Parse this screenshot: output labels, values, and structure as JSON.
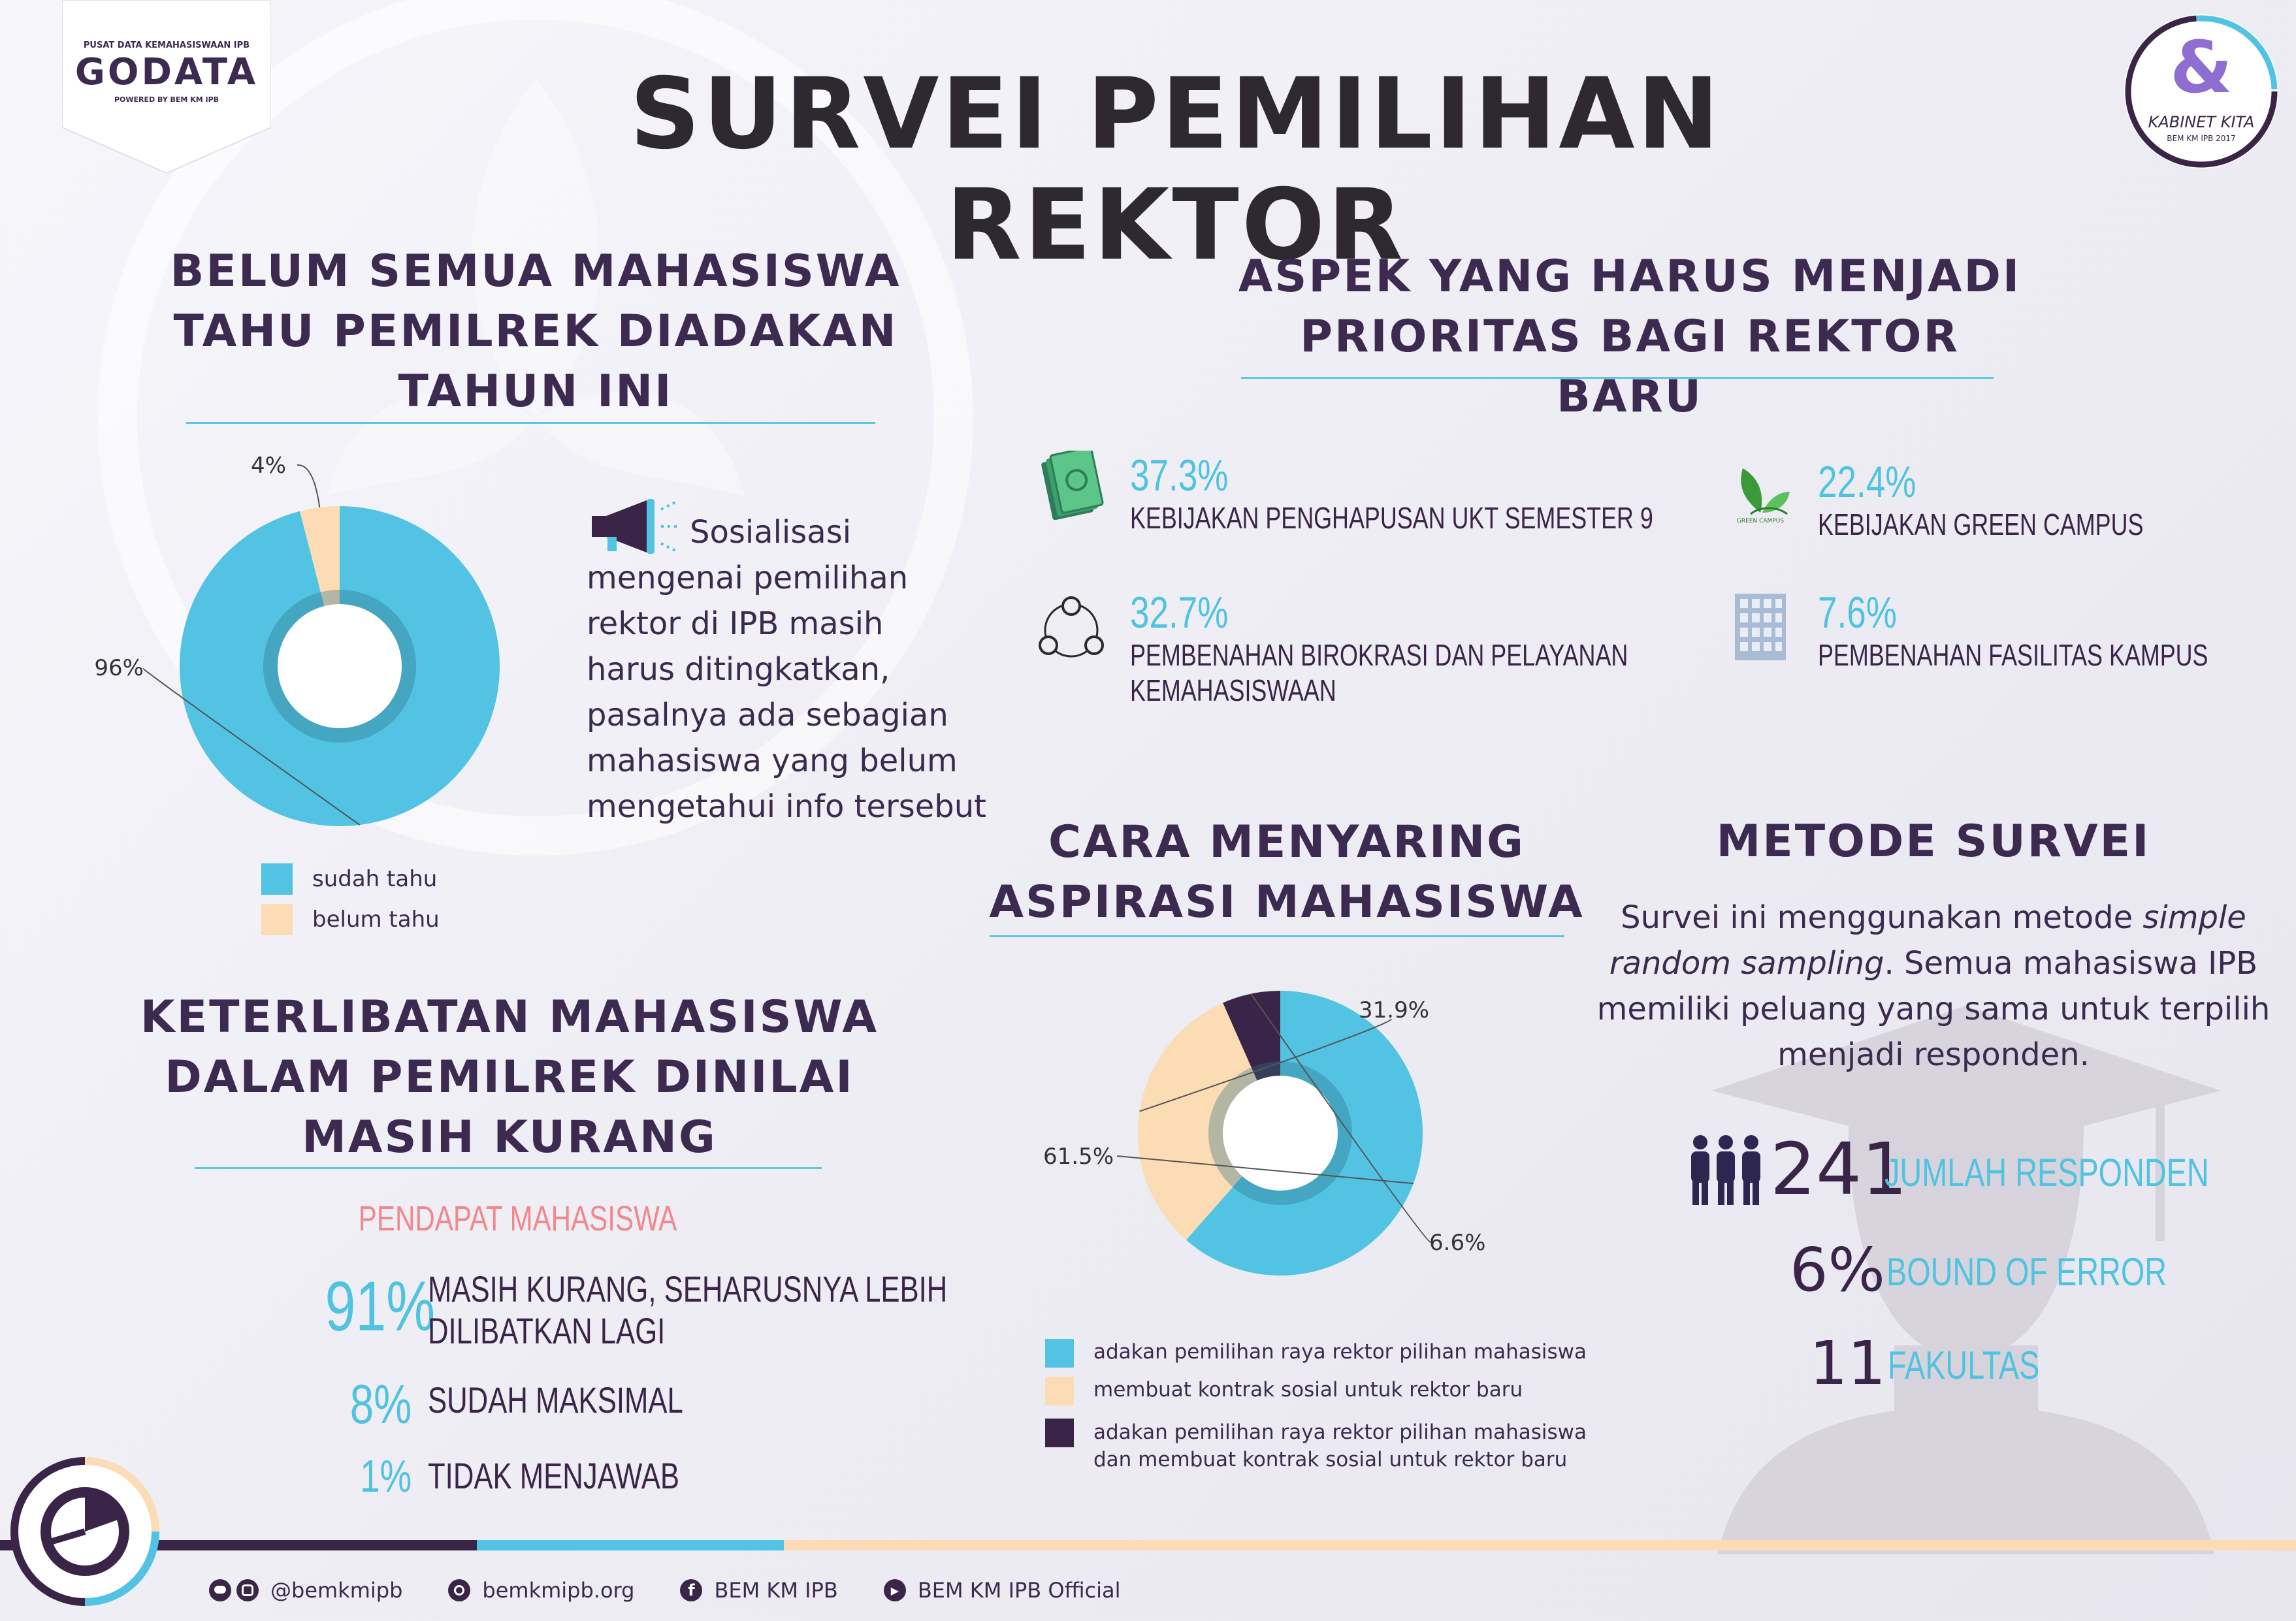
{
  "header": {
    "title": "SURVEI PEMILIHAN REKTOR",
    "logo_left": {
      "top": "PUSAT DATA KEMAHASISWAAN IPB",
      "name": "GODATA",
      "bottom": "POWERED BY BEM KM IPB"
    },
    "logo_right": {
      "symbol": "&",
      "name": "KABINET KITA",
      "bottom": "BEM KM IPB 2017"
    }
  },
  "section1": {
    "title_lines": [
      "BELUM SEMUA MAHASISWA",
      "TAHU PEMILREK DIADAKAN",
      "TAHUN INI"
    ],
    "description": "Sosialisasi mengenai pemilihan rektor di IPB masih harus ditingkatkan, pasalnya ada sebagian mahasiswa yang belum mengetahui info tersebut",
    "description_lines": [
      "Sosialisasi",
      "mengenai pemilihan",
      "rektor di IPB masih",
      "harus ditingkatkan,",
      "pasalnya ada sebagian",
      "mahasiswa yang belum",
      "mengetahui info tersebut"
    ],
    "legend": [
      "sudah tahu",
      "belum tahu"
    ]
  },
  "section2": {
    "title_lines": [
      "KETERLIBATAN MAHASISWA",
      "DALAM PEMILREK DINILAI",
      "MASIH KURANG"
    ],
    "subtitle": "PENDAPAT MAHASISWA",
    "items": [
      {
        "pct": "91%",
        "label_lines": [
          "MASIH KURANG, SEHARUSNYA LEBIH",
          "DILIBATKAN LAGI"
        ]
      },
      {
        "pct": "8%",
        "label_lines": [
          "SUDAH MAKSIMAL"
        ]
      },
      {
        "pct": "1%",
        "label_lines": [
          "TIDAK MENJAWAB"
        ]
      }
    ]
  },
  "section3": {
    "title_lines": [
      "ASPEK YANG HARUS MENJADI",
      "PRIORITAS BAGI REKTOR BARU"
    ],
    "items": [
      {
        "pct": "37.3%",
        "label_lines": [
          "KEBIJAKAN PENGHAPUSAN  UKT SEMESTER 9"
        ],
        "icon": "money-icon"
      },
      {
        "pct": "22.4%",
        "label_lines": [
          "KEBIJAKAN GREEN CAMPUS"
        ],
        "icon": "green-campus-icon",
        "icon_text": "GREEN CAMPUS"
      },
      {
        "pct": "32.7%",
        "label_lines": [
          "PEMBENAHAN BIROKRASI DAN PELAYANAN",
          "KEMAHASISWAAN"
        ],
        "icon": "network-icon"
      },
      {
        "pct": "7.6%",
        "label_lines": [
          "PEMBENAHAN FASILITAS KAMPUS"
        ],
        "icon": "building-icon"
      }
    ]
  },
  "section4": {
    "title_lines": [
      "CARA MENYARING",
      "ASPIRASI MAHASISWA"
    ],
    "legend": [
      {
        "lines": [
          "adakan pemilihan raya rektor pilihan mahasiswa"
        ],
        "color": "#52c3e3"
      },
      {
        "lines": [
          "membuat kontrak sosial untuk rektor baru"
        ],
        "color": "#fbdcb4"
      },
      {
        "lines": [
          "adakan pemilihan raya rektor pilihan mahasiswa",
          "dan membuat kontrak sosial untuk rektor baru"
        ],
        "color": "#3a2548"
      }
    ]
  },
  "section5": {
    "title": "METODE SURVEI",
    "text_parts": {
      "l1": "Survei ini menggunakan metode ",
      "l1_italic": "simple",
      "l2_italic": "random sampling",
      "l2": ". Semua mahasiswa IPB",
      "l3": "memiliki peluang yang sama untuk terpilih",
      "l4": "menjadi responden."
    },
    "stats": [
      {
        "value": "241",
        "label": "JUMLAH RESPONDEN"
      },
      {
        "value": "6%",
        "label": "BOUND OF ERROR"
      },
      {
        "value": "11",
        "label": "FAKULTAS"
      }
    ]
  },
  "footer": {
    "colors": [
      "#3a2548",
      "#52c3e3",
      "#fbdcb4"
    ],
    "social": [
      {
        "icon": "line-instagram-icon",
        "text": "@bemkmipb"
      },
      {
        "icon": "globe-icon",
        "text": "bemkmipb.org"
      },
      {
        "icon": "facebook-icon",
        "text": "BEM KM IPB"
      },
      {
        "icon": "youtube-icon",
        "text": "BEM KM IPB Official"
      }
    ]
  },
  "chart_data": [
    {
      "type": "pie",
      "title": "",
      "categories": [
        "sudah tahu",
        "belum tahu"
      ],
      "values": [
        96,
        4
      ],
      "labels": [
        "96%",
        "4%"
      ],
      "colors": [
        "#52c3e3",
        "#fbdcb4"
      ],
      "legend": "bottom"
    },
    {
      "type": "pie",
      "title": "",
      "categories": [
        "adakan pemilihan raya rektor pilihan mahasiswa",
        "membuat kontrak sosial untuk rektor baru",
        "adakan pemilihan raya rektor pilihan mahasiswa dan membuat kontrak sosial untuk rektor baru"
      ],
      "values": [
        61.5,
        31.9,
        6.6
      ],
      "labels": [
        "61.5%",
        "31.9%",
        "6.6%"
      ],
      "colors": [
        "#52c3e3",
        "#fbdcb4",
        "#3a2548"
      ],
      "legend": "bottom"
    }
  ]
}
